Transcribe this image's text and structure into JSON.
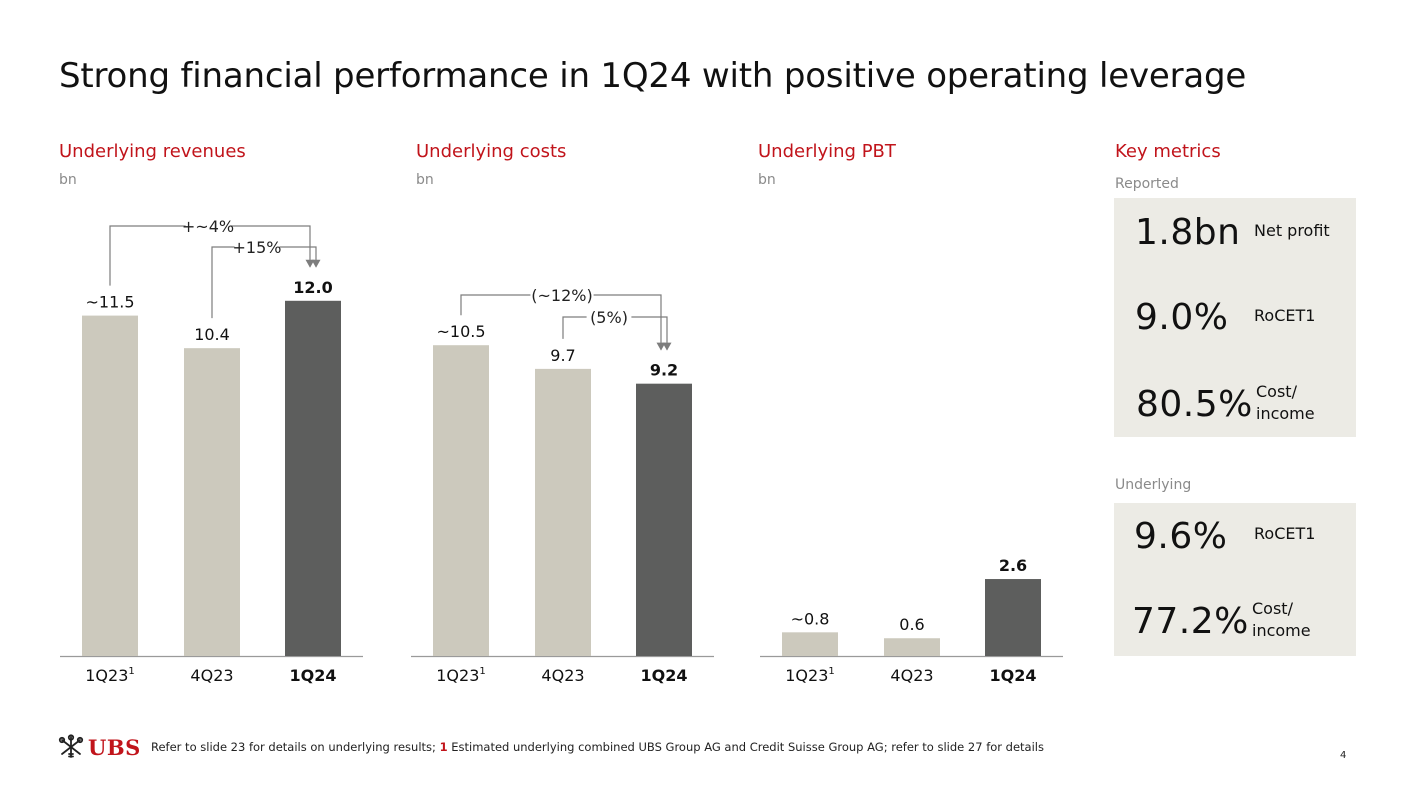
{
  "page": {
    "title": "Strong financial performance in 1Q24 with positive operating leverage",
    "page_number": "4"
  },
  "colors": {
    "red": "#c1141b",
    "light_bar": "#ccc9bd",
    "dark_bar": "#5d5e5d",
    "box_bg": "#ecebe5",
    "arrow": "#7d7d7d"
  },
  "chart_data": [
    {
      "type": "bar",
      "title": "Underlying revenues",
      "unit": "bn",
      "categories": [
        "1Q23",
        "4Q23",
        "1Q24"
      ],
      "category_superscripts": [
        "1",
        "",
        ""
      ],
      "values": [
        11.5,
        10.4,
        12.0
      ],
      "labels": [
        "~11.5",
        "10.4",
        "12.0"
      ],
      "highlight_index": 2,
      "annotations": [
        {
          "text": "+~4%",
          "from": 0,
          "to": 2
        },
        {
          "text": "+15%",
          "from": 1,
          "to": 2
        }
      ]
    },
    {
      "type": "bar",
      "title": "Underlying costs",
      "unit": "bn",
      "categories": [
        "1Q23",
        "4Q23",
        "1Q24"
      ],
      "category_superscripts": [
        "1",
        "",
        ""
      ],
      "values": [
        10.5,
        9.7,
        9.2
      ],
      "labels": [
        "~10.5",
        "9.7",
        "9.2"
      ],
      "highlight_index": 2,
      "annotations": [
        {
          "text": "(~12%)",
          "from": 0,
          "to": 2
        },
        {
          "text": "(5%)",
          "from": 1,
          "to": 2
        }
      ]
    },
    {
      "type": "bar",
      "title": "Underlying PBT",
      "unit": "bn",
      "categories": [
        "1Q23",
        "4Q23",
        "1Q24"
      ],
      "category_superscripts": [
        "1",
        "",
        ""
      ],
      "values": [
        0.8,
        0.6,
        2.6
      ],
      "labels": [
        "~0.8",
        "0.6",
        "2.6"
      ],
      "highlight_index": 2,
      "annotations": []
    }
  ],
  "key_metrics": {
    "title": "Key metrics",
    "reported": {
      "label": "Reported",
      "items": [
        {
          "value": "1.8bn",
          "label_line1": "Net profit",
          "label_line2": ""
        },
        {
          "value": "9.0%",
          "label_line1": "RoCET1",
          "label_line2": ""
        },
        {
          "value": "80.5%",
          "label_line1": "Cost/",
          "label_line2": "income"
        }
      ]
    },
    "underlying": {
      "label": "Underlying",
      "items": [
        {
          "value": "9.6%",
          "label_line1": "RoCET1",
          "label_line2": ""
        },
        {
          "value": "77.2%",
          "label_line1": "Cost/",
          "label_line2": "income"
        }
      ]
    }
  },
  "footer": {
    "brand": "UBS",
    "text_part1": "Refer to slide 23 for details on underlying results; ",
    "footnote_marker": "1",
    "text_part2": " Estimated underlying combined UBS Group AG and Credit Suisse Group AG; refer to slide 27 for details"
  }
}
